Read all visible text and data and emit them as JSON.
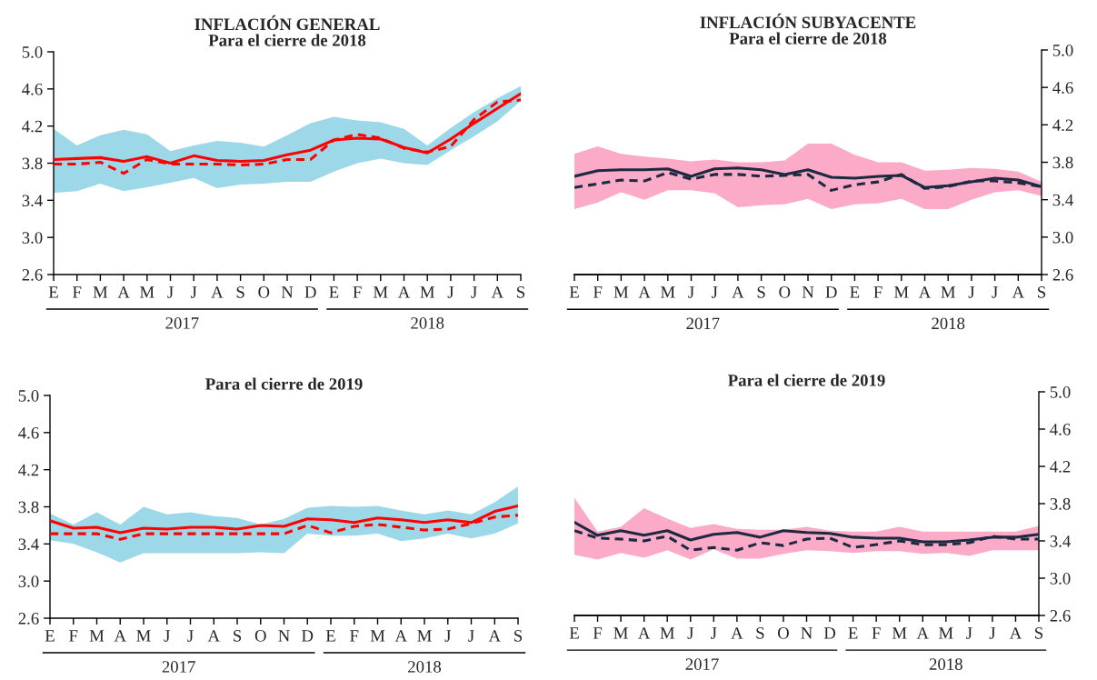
{
  "chart_data": [
    {
      "type": "line",
      "title": "INFLACIÓN GENERAL",
      "subtitle": "Para el cierre de 2018",
      "categories": [
        "E",
        "F",
        "M",
        "A",
        "M",
        "J",
        "J",
        "A",
        "S",
        "O",
        "N",
        "D",
        "E",
        "F",
        "M",
        "A",
        "M",
        "J",
        "J",
        "A",
        "S"
      ],
      "ylim": [
        2.6,
        5.0
      ],
      "yticks": [
        {
          "value": 2.6,
          "label": "2.6"
        },
        {
          "value": 3.0,
          "label": "3.0"
        },
        {
          "value": 3.4,
          "label": "3.4"
        },
        {
          "value": 3.8,
          "label": "3.8"
        },
        {
          "value": 4.2,
          "label": "4.2"
        },
        {
          "value": 4.6,
          "label": "4.6"
        },
        {
          "value": 5.0,
          "label": "5.0"
        }
      ],
      "annotations": [
        "2017",
        "2018"
      ],
      "series": [
        {
          "type": "area",
          "color": "#9dd8e9",
          "values": [
            null,
            null,
            null,
            null,
            null,
            null,
            null,
            null,
            null,
            null,
            null,
            null,
            null,
            null,
            null,
            null,
            null,
            null,
            null,
            null,
            null
          ],
          "lower": [
            3.48,
            3.5,
            3.58,
            3.5,
            3.54,
            3.59,
            3.64,
            3.53,
            3.57,
            3.58,
            3.6,
            3.6,
            3.71,
            3.8,
            3.85,
            3.8,
            3.78,
            3.94,
            4.09,
            4.25,
            4.47
          ],
          "upper": [
            4.17,
            3.99,
            4.1,
            4.16,
            4.11,
            3.93,
            3.99,
            4.04,
            4.02,
            3.98,
            4.1,
            4.23,
            4.3,
            4.26,
            4.24,
            4.17,
            3.99,
            4.18,
            4.35,
            4.5,
            4.63
          ]
        },
        {
          "type": "line",
          "color": "#ff0000",
          "line_style": "solid",
          "values": [
            3.84,
            3.85,
            3.86,
            3.82,
            3.87,
            3.8,
            3.88,
            3.83,
            3.82,
            3.83,
            3.89,
            3.94,
            4.05,
            4.07,
            4.06,
            3.97,
            3.91,
            4.06,
            4.23,
            4.39,
            4.55
          ]
        },
        {
          "type": "line",
          "color": "#ff0000",
          "line_style": "dashed",
          "values": [
            3.79,
            3.79,
            3.81,
            3.69,
            3.84,
            3.79,
            3.79,
            3.79,
            3.78,
            3.79,
            3.84,
            3.84,
            4.05,
            4.11,
            4.07,
            3.96,
            3.92,
            3.98,
            4.27,
            4.46,
            4.48
          ]
        }
      ]
    },
    {
      "type": "line",
      "title": "INFLACIÓN SUBYACENTE",
      "subtitle": "Para el cierre de 2018",
      "categories": [
        "E",
        "F",
        "M",
        "A",
        "M",
        "J",
        "J",
        "A",
        "S",
        "O",
        "N",
        "D",
        "E",
        "F",
        "M",
        "A",
        "M",
        "J",
        "J",
        "A",
        "S"
      ],
      "y2lim": [
        2.6,
        5.0
      ],
      "y2ticks": [
        {
          "value": 2.6,
          "label": "2.6"
        },
        {
          "value": 3.0,
          "label": "3.0"
        },
        {
          "value": 3.4,
          "label": "3.4"
        },
        {
          "value": 3.8,
          "label": "3.8"
        },
        {
          "value": 4.2,
          "label": "4.2"
        },
        {
          "value": 4.6,
          "label": "4.6"
        },
        {
          "value": 5.0,
          "label": "5.0"
        }
      ],
      "annotations": [
        "2017",
        "2018"
      ],
      "series": [
        {
          "type": "area",
          "axis": "y2",
          "color": "#fbaac7",
          "values": [
            null,
            null,
            null,
            null,
            null,
            null,
            null,
            null,
            null,
            null,
            null,
            null,
            null,
            null,
            null,
            null,
            null,
            null,
            null,
            null,
            null
          ],
          "lower": [
            3.3,
            3.37,
            3.48,
            3.4,
            3.5,
            3.5,
            3.47,
            3.32,
            3.34,
            3.35,
            3.41,
            3.3,
            3.35,
            3.36,
            3.41,
            3.3,
            3.3,
            3.4,
            3.48,
            3.5,
            3.44
          ],
          "upper": [
            3.89,
            3.97,
            3.89,
            3.86,
            3.84,
            3.81,
            3.83,
            3.8,
            3.8,
            3.82,
            4.0,
            4.0,
            3.88,
            3.8,
            3.8,
            3.71,
            3.72,
            3.74,
            3.73,
            3.7,
            3.59
          ]
        },
        {
          "type": "line",
          "axis": "y2",
          "color": "#1b2a40",
          "line_style": "solid",
          "values": [
            3.65,
            3.71,
            3.72,
            3.72,
            3.73,
            3.65,
            3.73,
            3.74,
            3.72,
            3.67,
            3.72,
            3.64,
            3.63,
            3.65,
            3.66,
            3.53,
            3.55,
            3.59,
            3.63,
            3.61,
            3.54
          ]
        },
        {
          "type": "line",
          "axis": "y2",
          "color": "#1b2a40",
          "line_style": "dashed",
          "values": [
            3.53,
            3.57,
            3.61,
            3.6,
            3.69,
            3.62,
            3.67,
            3.67,
            3.65,
            3.66,
            3.67,
            3.5,
            3.56,
            3.59,
            3.67,
            3.52,
            3.54,
            3.6,
            3.6,
            3.58,
            3.54
          ]
        }
      ]
    },
    {
      "type": "line",
      "title": "Para el cierre de 2019",
      "categories": [
        "E",
        "F",
        "M",
        "A",
        "M",
        "J",
        "J",
        "A",
        "S",
        "O",
        "N",
        "D",
        "E",
        "F",
        "M",
        "A",
        "M",
        "J",
        "J",
        "A",
        "S"
      ],
      "ylim": [
        2.6,
        5.0
      ],
      "yticks": [
        {
          "value": 2.6,
          "label": "2.6"
        },
        {
          "value": 3.0,
          "label": "3.0"
        },
        {
          "value": 3.4,
          "label": "3.4"
        },
        {
          "value": 3.8,
          "label": "3.8"
        },
        {
          "value": 4.2,
          "label": "4.2"
        },
        {
          "value": 4.6,
          "label": "4.6"
        },
        {
          "value": 5.0,
          "label": "5.0"
        }
      ],
      "annotations": [
        "2017",
        "2018"
      ],
      "series": [
        {
          "type": "area",
          "color": "#9dd8e9",
          "values": [
            null,
            null,
            null,
            null,
            null,
            null,
            null,
            null,
            null,
            null,
            null,
            null,
            null,
            null,
            null,
            null,
            null,
            null,
            null,
            null,
            null
          ],
          "lower": [
            3.44,
            3.4,
            3.31,
            3.2,
            3.3,
            3.3,
            3.3,
            3.3,
            3.3,
            3.31,
            3.3,
            3.51,
            3.49,
            3.49,
            3.51,
            3.43,
            3.46,
            3.51,
            3.46,
            3.51,
            3.62
          ],
          "upper": [
            3.73,
            3.61,
            3.74,
            3.61,
            3.8,
            3.72,
            3.74,
            3.7,
            3.68,
            3.61,
            3.67,
            3.79,
            3.81,
            3.8,
            3.81,
            3.76,
            3.72,
            3.76,
            3.72,
            3.85,
            4.02
          ]
        },
        {
          "type": "line",
          "color": "#ff0000",
          "line_style": "solid",
          "values": [
            3.65,
            3.57,
            3.58,
            3.52,
            3.57,
            3.56,
            3.58,
            3.58,
            3.56,
            3.6,
            3.59,
            3.67,
            3.66,
            3.63,
            3.68,
            3.66,
            3.63,
            3.66,
            3.63,
            3.75,
            3.81
          ]
        },
        {
          "type": "line",
          "color": "#ff0000",
          "line_style": "dashed",
          "values": [
            3.51,
            3.51,
            3.51,
            3.45,
            3.51,
            3.51,
            3.51,
            3.51,
            3.51,
            3.51,
            3.51,
            3.6,
            3.52,
            3.59,
            3.61,
            3.58,
            3.55,
            3.56,
            3.62,
            3.69,
            3.71
          ]
        }
      ]
    },
    {
      "type": "line",
      "title": "Para el cierre de 2019",
      "categories": [
        "E",
        "F",
        "M",
        "A",
        "M",
        "J",
        "J",
        "A",
        "S",
        "O",
        "N",
        "D",
        "E",
        "F",
        "M",
        "A",
        "M",
        "J",
        "J",
        "A",
        "S"
      ],
      "y2lim": [
        2.6,
        5.0
      ],
      "y2ticks": [
        {
          "value": 2.6,
          "label": "2.6"
        },
        {
          "value": 3.0,
          "label": "3.0"
        },
        {
          "value": 3.4,
          "label": "3.4"
        },
        {
          "value": 3.8,
          "label": "3.8"
        },
        {
          "value": 4.2,
          "label": "4.2"
        },
        {
          "value": 4.6,
          "label": "4.6"
        },
        {
          "value": 5.0,
          "label": "5.0"
        }
      ],
      "annotations": [
        "2017",
        "2018"
      ],
      "series": [
        {
          "type": "area",
          "axis": "y2",
          "color": "#fbaac7",
          "values": [
            null,
            null,
            null,
            null,
            null,
            null,
            null,
            null,
            null,
            null,
            null,
            null,
            null,
            null,
            null,
            null,
            null,
            null,
            null,
            null,
            null
          ],
          "lower": [
            3.25,
            3.2,
            3.27,
            3.22,
            3.3,
            3.2,
            3.31,
            3.21,
            3.21,
            3.26,
            3.3,
            3.29,
            3.27,
            3.29,
            3.29,
            3.26,
            3.27,
            3.24,
            3.3,
            3.3,
            3.3
          ],
          "upper": [
            3.86,
            3.5,
            3.55,
            3.75,
            3.64,
            3.54,
            3.58,
            3.53,
            3.52,
            3.52,
            3.55,
            3.51,
            3.5,
            3.5,
            3.55,
            3.5,
            3.5,
            3.5,
            3.5,
            3.5,
            3.56
          ]
        },
        {
          "type": "line",
          "axis": "y2",
          "color": "#1b2a40",
          "line_style": "solid",
          "values": [
            3.6,
            3.46,
            3.51,
            3.46,
            3.51,
            3.41,
            3.47,
            3.49,
            3.44,
            3.51,
            3.49,
            3.48,
            3.44,
            3.43,
            3.43,
            3.39,
            3.39,
            3.41,
            3.44,
            3.44,
            3.47
          ]
        },
        {
          "type": "line",
          "axis": "y2",
          "color": "#1b2a40",
          "line_style": "dashed",
          "values": [
            3.51,
            3.43,
            3.42,
            3.4,
            3.45,
            3.3,
            3.33,
            3.3,
            3.38,
            3.35,
            3.42,
            3.43,
            3.33,
            3.36,
            3.4,
            3.36,
            3.36,
            3.38,
            3.45,
            3.42,
            3.42
          ]
        }
      ]
    }
  ]
}
